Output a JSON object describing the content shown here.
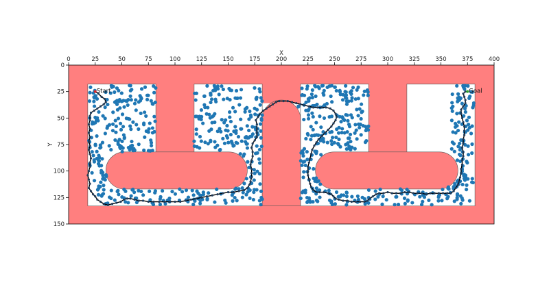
{
  "chart_data": {
    "type": "scatter",
    "title": "",
    "xlabel": "X",
    "ylabel": "Y",
    "xlim": [
      0,
      400
    ],
    "ylim": [
      150,
      0
    ],
    "x_ticks": [
      "0",
      "25",
      "50",
      "75",
      "100",
      "125",
      "150",
      "175",
      "200",
      "225",
      "250",
      "275",
      "300",
      "325",
      "350",
      "375",
      "400"
    ],
    "y_ticks": [
      "0",
      "25",
      "50",
      "75",
      "100",
      "125",
      "150"
    ],
    "x_axis_position": "top",
    "grid": false,
    "colors": {
      "obstacle": "#ff7f7f",
      "free_space": "#ffffff",
      "samples": "#1f77b4",
      "path": "#000000"
    },
    "free_regions": [
      {
        "x0": 18,
        "y0": 18,
        "x1": 82,
        "y1": 133
      },
      {
        "x0": 118,
        "y0": 18,
        "x1": 182,
        "y1": 133
      },
      {
        "x0": 218,
        "y0": 18,
        "x1": 282,
        "y1": 133
      },
      {
        "x0": 318,
        "y0": 18,
        "x1": 382,
        "y1": 133
      },
      {
        "x0": 82,
        "y0": 82,
        "x1": 118,
        "y1": 133
      },
      {
        "x0": 182,
        "y0": 36,
        "x1": 218,
        "y1": 133
      },
      {
        "x0": 282,
        "y0": 82,
        "x1": 318,
        "y1": 133
      }
    ],
    "obstacles": [
      {
        "shape": "stadium",
        "x0": 35,
        "y0": 82,
        "x1": 168,
        "y1": 117
      },
      {
        "shape": "stadium",
        "x0": 232,
        "y0": 82,
        "x1": 366,
        "y1": 117
      },
      {
        "shape": "arch",
        "x0": 182,
        "y0": 33,
        "x1": 218,
        "y1": 133
      }
    ],
    "annotations": [
      {
        "text": "Start",
        "x": 25,
        "y": 25
      },
      {
        "text": "Goal",
        "x": 375,
        "y": 25
      }
    ],
    "path": [
      [
        25,
        25
      ],
      [
        28,
        27
      ],
      [
        31,
        30
      ],
      [
        34,
        32
      ],
      [
        35,
        35
      ],
      [
        33,
        37
      ],
      [
        30,
        39
      ],
      [
        27,
        41
      ],
      [
        24,
        43
      ],
      [
        21,
        45
      ],
      [
        20,
        48
      ],
      [
        20,
        52
      ],
      [
        19,
        56
      ],
      [
        20,
        60
      ],
      [
        19,
        64
      ],
      [
        20,
        68
      ],
      [
        19,
        72
      ],
      [
        20,
        76
      ],
      [
        19,
        80
      ],
      [
        20,
        84
      ],
      [
        21,
        88
      ],
      [
        20,
        92
      ],
      [
        20,
        96
      ],
      [
        19,
        100
      ],
      [
        18,
        104
      ],
      [
        19,
        108
      ],
      [
        20,
        112
      ],
      [
        19,
        116
      ],
      [
        21,
        119
      ],
      [
        23,
        122
      ],
      [
        25,
        124
      ],
      [
        27,
        127
      ],
      [
        30,
        129
      ],
      [
        33,
        131
      ],
      [
        37,
        132
      ],
      [
        41,
        131
      ],
      [
        45,
        130
      ],
      [
        49,
        129
      ],
      [
        52,
        127
      ],
      [
        55,
        126
      ],
      [
        58,
        126
      ],
      [
        62,
        127
      ],
      [
        66,
        128
      ],
      [
        70,
        128
      ],
      [
        75,
        129
      ],
      [
        80,
        129
      ],
      [
        85,
        129
      ],
      [
        90,
        129
      ],
      [
        95,
        129
      ],
      [
        100,
        129
      ],
      [
        105,
        129
      ],
      [
        110,
        128
      ],
      [
        115,
        127
      ],
      [
        120,
        126
      ],
      [
        125,
        125
      ],
      [
        130,
        124
      ],
      [
        135,
        123
      ],
      [
        140,
        122
      ],
      [
        145,
        121
      ],
      [
        150,
        120
      ],
      [
        155,
        120
      ],
      [
        160,
        119
      ],
      [
        165,
        118
      ],
      [
        168,
        116
      ],
      [
        170,
        113
      ],
      [
        171,
        110
      ],
      [
        172,
        106
      ],
      [
        172,
        102
      ],
      [
        172,
        98
      ],
      [
        171,
        94
      ],
      [
        172,
        90
      ],
      [
        173,
        86
      ],
      [
        173,
        82
      ],
      [
        172,
        78
      ],
      [
        173,
        74
      ],
      [
        175,
        71
      ],
      [
        177,
        68
      ],
      [
        177,
        64
      ],
      [
        177,
        60
      ],
      [
        177,
        56
      ],
      [
        176,
        52
      ],
      [
        178,
        49
      ],
      [
        180,
        46
      ],
      [
        183,
        43
      ],
      [
        186,
        41
      ],
      [
        189,
        39
      ],
      [
        192,
        37
      ],
      [
        195,
        35
      ],
      [
        198,
        34
      ],
      [
        202,
        34
      ],
      [
        206,
        34
      ],
      [
        210,
        35
      ],
      [
        214,
        36
      ],
      [
        218,
        37
      ],
      [
        222,
        38
      ],
      [
        226,
        39
      ],
      [
        230,
        40
      ],
      [
        234,
        40
      ],
      [
        238,
        40
      ],
      [
        242,
        40
      ],
      [
        246,
        41
      ],
      [
        249,
        43
      ],
      [
        251,
        46
      ],
      [
        252,
        49
      ],
      [
        251,
        52
      ],
      [
        249,
        55
      ],
      [
        247,
        58
      ],
      [
        244,
        61
      ],
      [
        241,
        64
      ],
      [
        238,
        67
      ],
      [
        235,
        70
      ],
      [
        233,
        73
      ],
      [
        231,
        76
      ],
      [
        229,
        80
      ],
      [
        228,
        84
      ],
      [
        227,
        88
      ],
      [
        226,
        92
      ],
      [
        225,
        96
      ],
      [
        225,
        100
      ],
      [
        225,
        104
      ],
      [
        226,
        108
      ],
      [
        227,
        112
      ],
      [
        228,
        115
      ],
      [
        230,
        118
      ],
      [
        233,
        120
      ],
      [
        236,
        120
      ],
      [
        240,
        120
      ],
      [
        244,
        121
      ],
      [
        247,
        122
      ],
      [
        249,
        124
      ],
      [
        251,
        126
      ],
      [
        254,
        127
      ],
      [
        258,
        128
      ],
      [
        262,
        128
      ],
      [
        266,
        129
      ],
      [
        270,
        129
      ],
      [
        274,
        129
      ],
      [
        278,
        129
      ],
      [
        281,
        128
      ],
      [
        283,
        126
      ],
      [
        286,
        124
      ],
      [
        289,
        122
      ],
      [
        292,
        121
      ],
      [
        296,
        121
      ],
      [
        300,
        120
      ],
      [
        304,
        121
      ],
      [
        308,
        121
      ],
      [
        312,
        121
      ],
      [
        316,
        120
      ],
      [
        320,
        120
      ],
      [
        324,
        121
      ],
      [
        328,
        121
      ],
      [
        332,
        121
      ],
      [
        336,
        122
      ],
      [
        340,
        121
      ],
      [
        344,
        121
      ],
      [
        348,
        121
      ],
      [
        352,
        121
      ],
      [
        356,
        121
      ],
      [
        359,
        121
      ],
      [
        362,
        119
      ],
      [
        364,
        116
      ],
      [
        366,
        113
      ],
      [
        367,
        110
      ],
      [
        368,
        106
      ],
      [
        369,
        102
      ],
      [
        369,
        98
      ],
      [
        370,
        94
      ],
      [
        370,
        90
      ],
      [
        371,
        86
      ],
      [
        371,
        82
      ],
      [
        370,
        78
      ],
      [
        371,
        74
      ],
      [
        371,
        70
      ],
      [
        372,
        66
      ],
      [
        372,
        62
      ],
      [
        372,
        58
      ],
      [
        371,
        54
      ],
      [
        370,
        50
      ],
      [
        369,
        46
      ],
      [
        369,
        42
      ],
      [
        371,
        39
      ],
      [
        373,
        36
      ],
      [
        373,
        33
      ],
      [
        372,
        30
      ],
      [
        371,
        27
      ],
      [
        373,
        25
      ],
      [
        375,
        25
      ]
    ],
    "samples_note_count": 900
  }
}
